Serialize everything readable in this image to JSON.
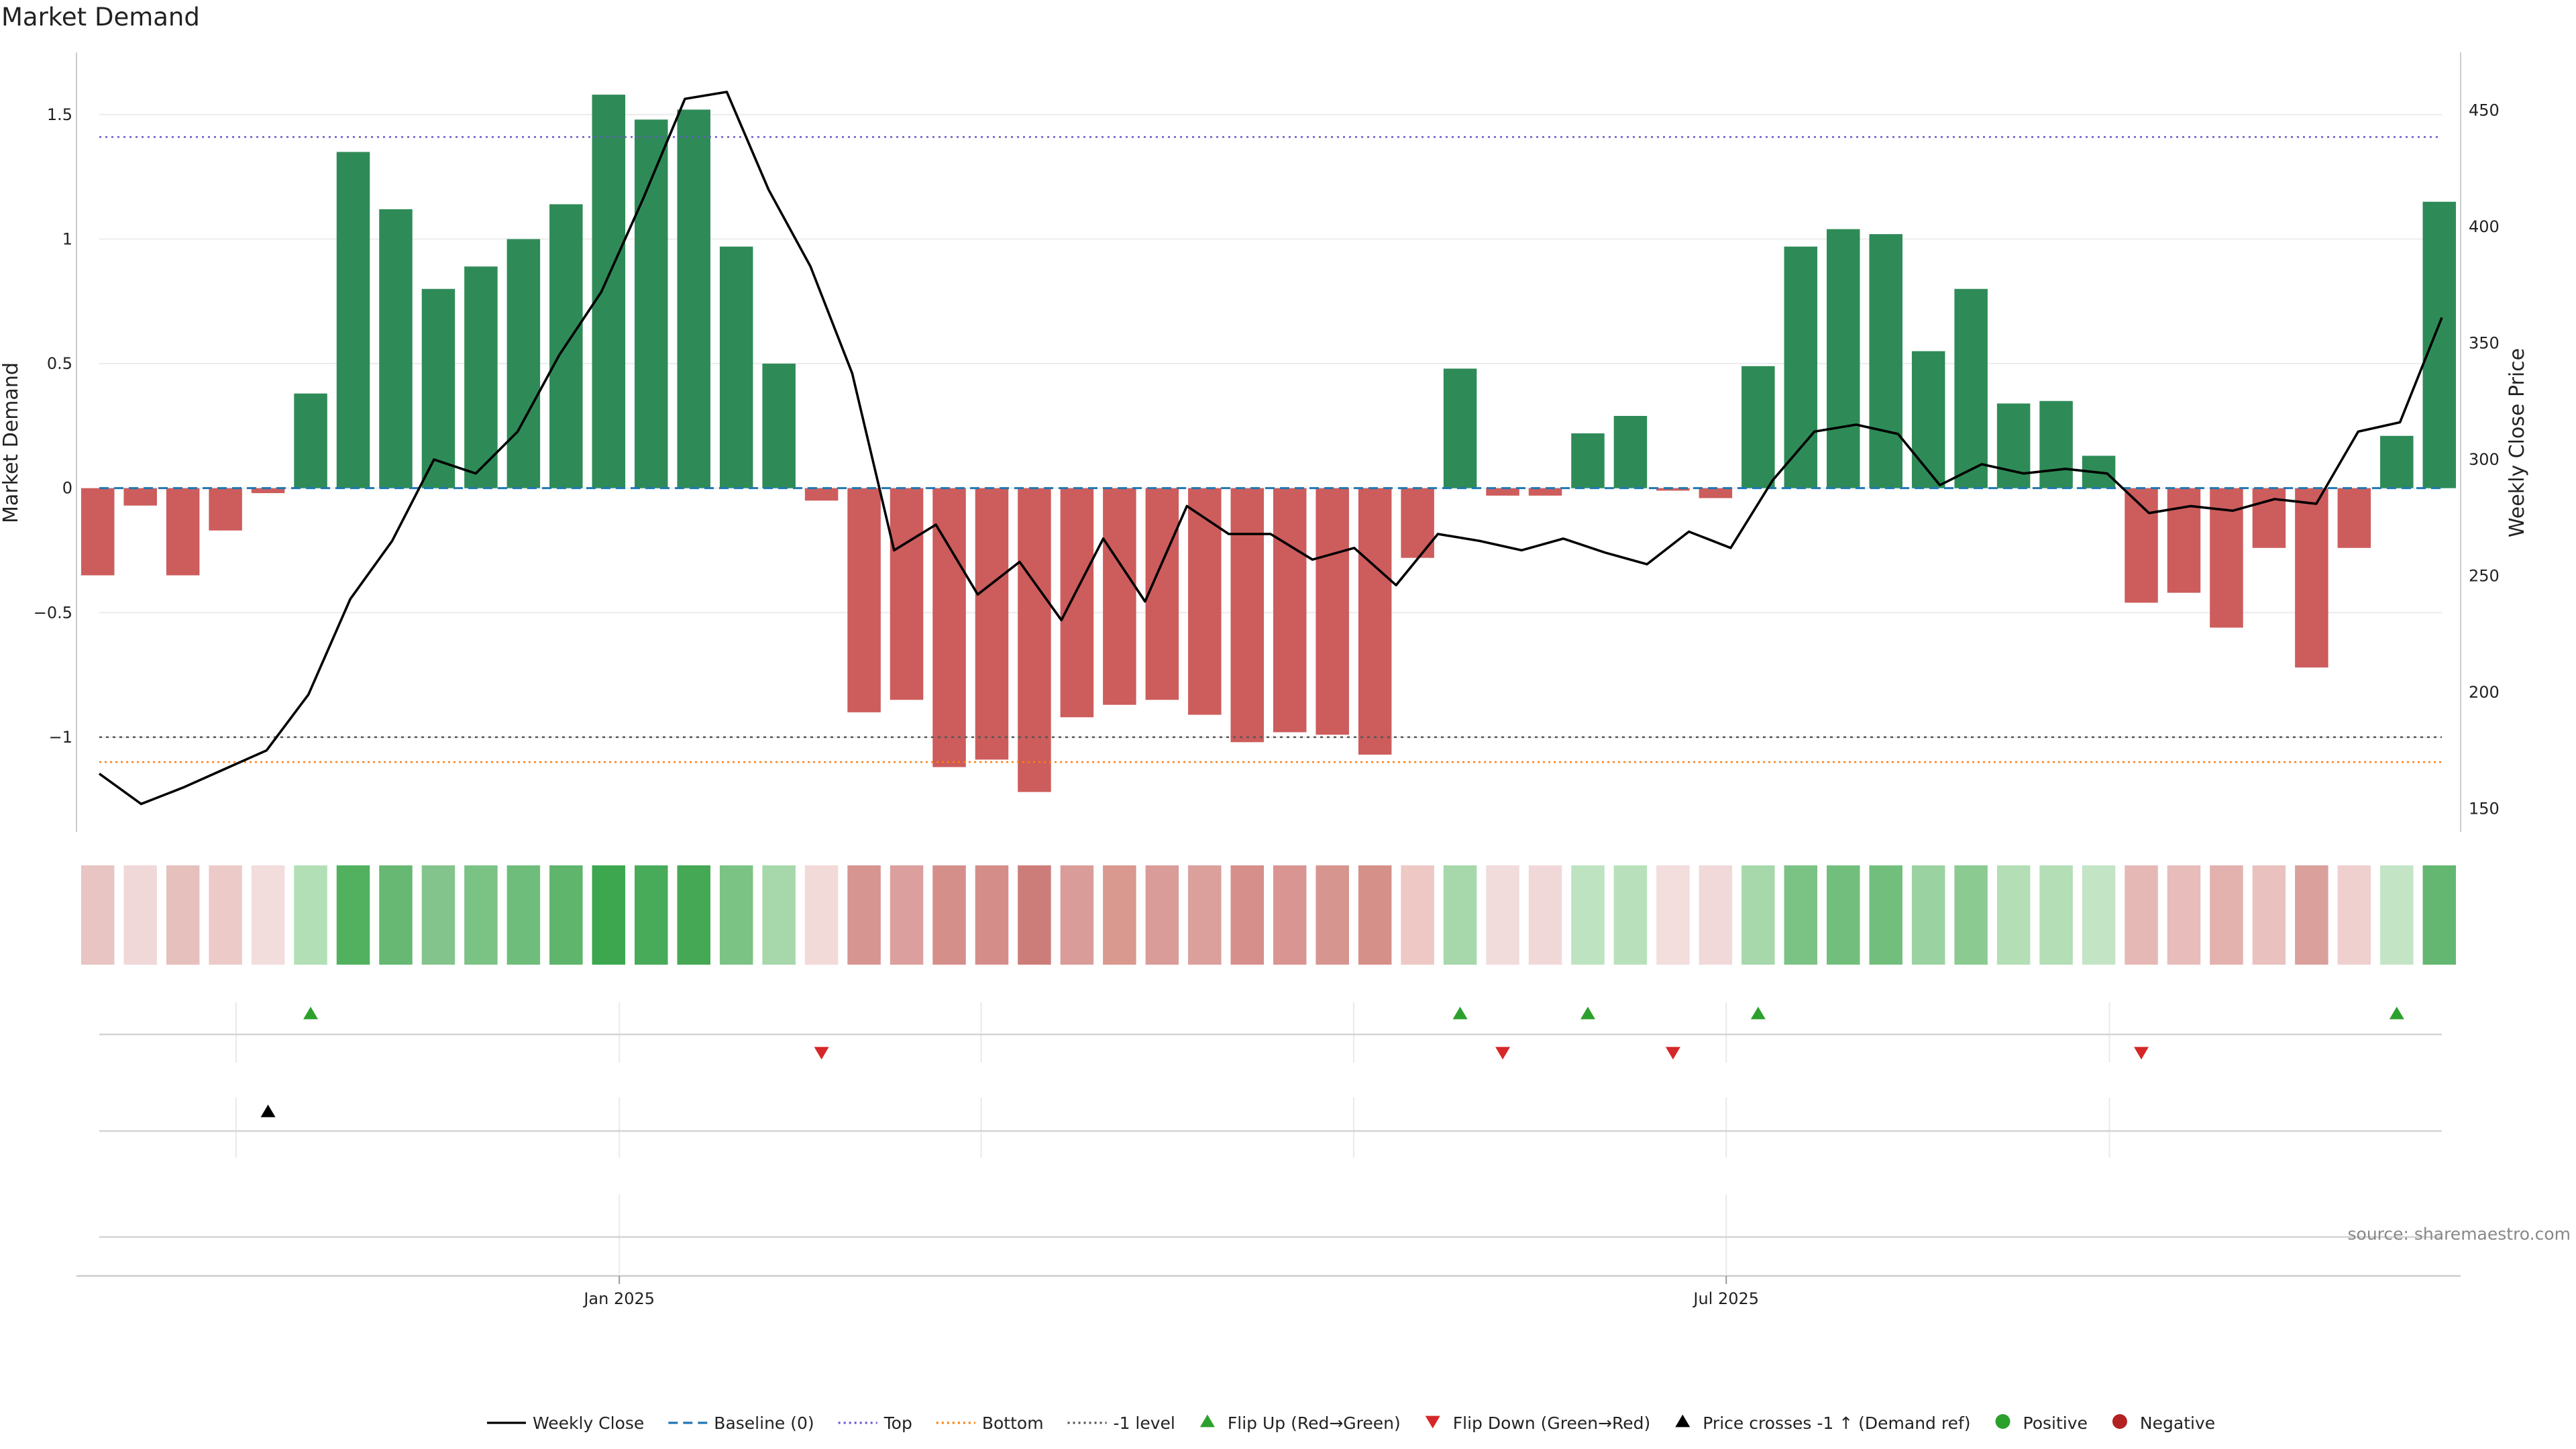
{
  "chart_data": {
    "type": "bar",
    "title": "Market Demand",
    "ylabel_left": "Market Demand",
    "ylabel_right": "Weekly Close Price",
    "ylim_left": [
      -1.38,
      1.75
    ],
    "ylim_right": [
      140,
      475
    ],
    "yticks_left": [
      1.5,
      1,
      0.5,
      0,
      -0.5,
      -1
    ],
    "ytick_labels_left": [
      "1.5",
      "1",
      "0.5",
      "0",
      "−0.5",
      "−1"
    ],
    "yticks_right": [
      450,
      400,
      350,
      300,
      250,
      200,
      150
    ],
    "ytick_labels_right": [
      "450",
      "400",
      "350",
      "300",
      "250",
      "200",
      "150"
    ],
    "x_tick_labels": [
      {
        "label": "Jan 2025",
        "index": 12.75
      },
      {
        "label": "Jul 2025",
        "index": 38.75
      }
    ],
    "month_separators": [
      3.75,
      12.75,
      21.25,
      30,
      38.75,
      47.75
    ],
    "reference_lines": {
      "top": 1.41,
      "bottom": -1.1,
      "minus_one": -1.0,
      "baseline": 0
    },
    "demand": [
      -0.35,
      -0.07,
      -0.35,
      -0.17,
      -0.02,
      0.38,
      1.35,
      1.12,
      0.8,
      0.89,
      1.0,
      1.14,
      1.58,
      1.48,
      1.52,
      0.97,
      0.5,
      -0.05,
      -0.9,
      -0.85,
      -1.12,
      -1.09,
      -1.22,
      -0.92,
      -0.87,
      -0.85,
      -0.91,
      -1.02,
      -0.98,
      -0.99,
      -1.07,
      -0.28,
      0.48,
      -0.03,
      -0.03,
      0.22,
      0.29,
      -0.01,
      -0.04,
      0.49,
      0.97,
      1.04,
      1.02,
      0.55,
      0.8,
      0.34,
      0.35,
      0.13,
      -0.46,
      -0.42,
      -0.56,
      -0.24,
      -0.72,
      -0.24,
      0.21,
      1.15
    ],
    "price": [
      165,
      152,
      159,
      167,
      175,
      199,
      240,
      265,
      300,
      294,
      312,
      345,
      372,
      412,
      455,
      458,
      416,
      383,
      337,
      261,
      272,
      242,
      256,
      231,
      266,
      239,
      280,
      268,
      268,
      257,
      262,
      246,
      268,
      265,
      261,
      266,
      260,
      255,
      269,
      262,
      291,
      312,
      315,
      311,
      289,
      298,
      294,
      296,
      294,
      277,
      280,
      278,
      283,
      281,
      312,
      316,
      361
    ],
    "flip_up_indices": [
      5.5,
      32.5,
      35.5,
      39.5,
      54.5
    ],
    "flip_down_indices": [
      17.5,
      33.5,
      37.5,
      48.5
    ],
    "price_cross_indices": [
      4.5
    ],
    "heat_colors": [
      "#e8c4c2",
      "#f0d8d8",
      "#e6c0bd",
      "#eccac8",
      "#f2dcdc",
      "#b2dfb6",
      "#52b15f",
      "#66b873",
      "#83c48d",
      "#7bc285",
      "#6fbd7b",
      "#5fb56c",
      "#3da750",
      "#48ab59",
      "#44a855",
      "#7bc285",
      "#a6d8ab",
      "#f2dad9",
      "#d69591",
      "#dba09d",
      "#d58f8b",
      "#d48d89",
      "#cd7d79",
      "#da9c98",
      "#d9998e",
      "#da9c98",
      "#dba09c",
      "#d68f8b",
      "#d99591",
      "#d79590",
      "#d59089",
      "#edc8c5",
      "#a6d8ab",
      "#f2dbdb",
      "#f1d8d8",
      "#bde3c0",
      "#b8e1bb",
      "#f3dddd",
      "#f1d9d9",
      "#a6d8ab",
      "#7bc285",
      "#72bf7d",
      "#72bf7d",
      "#9bd2a1",
      "#8bcb92",
      "#b3deb6",
      "#b3deb6",
      "#c3e5c5",
      "#e5b8b6",
      "#e7bcba",
      "#e3b1ae",
      "#e9c2c0",
      "#d9a09c",
      "#efd0ce",
      "#c3e5c5",
      "#64b771"
    ],
    "legend": [
      {
        "label": "Weekly Close",
        "kind": "solid-line",
        "color": "#000000"
      },
      {
        "label": "Baseline (0)",
        "kind": "dashed-line",
        "color": "#1f77b4"
      },
      {
        "label": "Top",
        "kind": "dotted-line",
        "color": "#6a5acd"
      },
      {
        "label": "Bottom",
        "kind": "dotted-line",
        "color": "#ff7f0e"
      },
      {
        "label": "-1 level",
        "kind": "dotted-line",
        "color": "#555555"
      },
      {
        "label": "Flip Up (Red→Green)",
        "kind": "tri-up",
        "color": "#2ca02c"
      },
      {
        "label": "Flip Down (Green→Red)",
        "kind": "tri-down",
        "color": "#d62728"
      },
      {
        "label": "Price crosses -1 ↑ (Demand ref)",
        "kind": "tri-up",
        "color": "#000000"
      },
      {
        "label": "Positive",
        "kind": "dot",
        "color": "#2ca02c"
      },
      {
        "label": "Negative",
        "kind": "dot",
        "color": "#b22222"
      }
    ],
    "colors": {
      "positive": "#2e8b57",
      "negative": "#cd5c5c",
      "price_line": "#000000"
    }
  },
  "source": "source: sharemaestro.com"
}
